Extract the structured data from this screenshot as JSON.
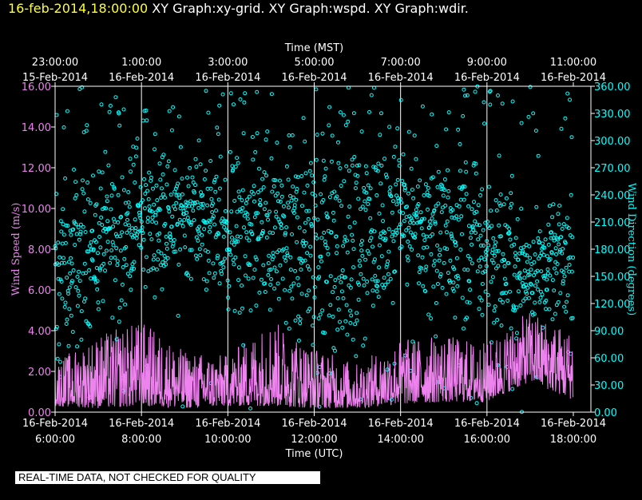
{
  "header": {
    "timestamp": "16-feb-2014,18:00:00",
    "graph_titles": "XY Graph:xy-grid.  XY Graph:wspd.  XY Graph:wdir."
  },
  "quality_notice": "REAL-TIME DATA, NOT CHECKED FOR QUALITY",
  "colors": {
    "background": "#000000",
    "frame": "#ffffff",
    "wind_speed": "#ee82ee",
    "wind_direction": "#00ffff",
    "timestamp": "#ffff33"
  },
  "chart_data": {
    "type": "scatter",
    "grid": true,
    "top_axis": {
      "label": "Time (MST)",
      "ticks": [
        {
          "time": "23:00:00",
          "date": "15-Feb-2014"
        },
        {
          "time": "1:00:00",
          "date": "16-Feb-2014"
        },
        {
          "time": "3:00:00",
          "date": "16-Feb-2014"
        },
        {
          "time": "5:00:00",
          "date": "16-Feb-2014"
        },
        {
          "time": "7:00:00",
          "date": "16-Feb-2014"
        },
        {
          "time": "9:00:00",
          "date": "16-Feb-2014"
        },
        {
          "time": "11:00:00",
          "date": "16-Feb-2014"
        }
      ]
    },
    "bottom_axis": {
      "label": "Time (UTC)",
      "ticks": [
        {
          "time": "6:00:00",
          "date": "16-Feb-2014"
        },
        {
          "time": "8:00:00",
          "date": "16-Feb-2014"
        },
        {
          "time": "10:00:00",
          "date": "16-Feb-2014"
        },
        {
          "time": "12:00:00",
          "date": "16-Feb-2014"
        },
        {
          "time": "14:00:00",
          "date": "16-Feb-2014"
        },
        {
          "time": "16:00:00",
          "date": "16-Feb-2014"
        },
        {
          "time": "18:00:00",
          "date": "16-Feb-2014"
        }
      ]
    },
    "x_range_utc_hours": [
      6,
      18
    ],
    "left_axis": {
      "label": "Wind Speed (m/s)",
      "ylim": [
        0,
        16
      ],
      "tick_labels": [
        "0.00",
        "2.00",
        "4.00",
        "6.00",
        "8.00",
        "10.00",
        "12.00",
        "14.00",
        "16.00"
      ]
    },
    "right_axis": {
      "label": "Wind Direction (degrees)",
      "ylim": [
        0,
        360
      ],
      "tick_labels": [
        "0.00",
        "30.00",
        "60.00",
        "90.00",
        "120.00",
        "150.00",
        "180.00",
        "210.00",
        "240.00",
        "270.00",
        "300.00",
        "330.00",
        "360.00"
      ]
    },
    "series": [
      {
        "name": "wspd",
        "axis": "left",
        "style": "line",
        "color": "#ee82ee",
        "approx_hourly_range_ms": [
          {
            "hour_utc": 6,
            "low": 0.3,
            "high": 2.5
          },
          {
            "hour_utc": 7,
            "low": 0.2,
            "high": 3.8
          },
          {
            "hour_utc": 8,
            "low": 0.3,
            "high": 4.5
          },
          {
            "hour_utc": 9,
            "low": 0.2,
            "high": 3.0
          },
          {
            "hour_utc": 10,
            "low": 0.3,
            "high": 2.8
          },
          {
            "hour_utc": 11,
            "low": 0.3,
            "high": 4.6
          },
          {
            "hour_utc": 12,
            "low": 0.2,
            "high": 3.2
          },
          {
            "hour_utc": 13,
            "low": 0.2,
            "high": 2.4
          },
          {
            "hour_utc": 14,
            "low": 0.4,
            "high": 3.6
          },
          {
            "hour_utc": 15,
            "low": 0.5,
            "high": 3.8
          },
          {
            "hour_utc": 16,
            "low": 0.5,
            "high": 3.4
          },
          {
            "hour_utc": 17,
            "low": 1.5,
            "high": 5.0
          },
          {
            "hour_utc": 18,
            "low": 0.6,
            "high": 4.0
          }
        ]
      },
      {
        "name": "wdir",
        "axis": "right",
        "style": "circles",
        "color": "#00ffff",
        "approx_hourly_cluster_deg": [
          {
            "hour_utc": 6,
            "center": 140,
            "spread": 100
          },
          {
            "hour_utc": 7,
            "center": 190,
            "spread": 80
          },
          {
            "hour_utc": 8,
            "center": 210,
            "spread": 70
          },
          {
            "hour_utc": 9,
            "center": 220,
            "spread": 60
          },
          {
            "hour_utc": 10,
            "center": 200,
            "spread": 80
          },
          {
            "hour_utc": 11,
            "center": 200,
            "spread": 90
          },
          {
            "hour_utc": 12,
            "center": 180,
            "spread": 120
          },
          {
            "hour_utc": 13,
            "center": 180,
            "spread": 130
          },
          {
            "hour_utc": 14,
            "center": 220,
            "spread": 60
          },
          {
            "hour_utc": 15,
            "center": 200,
            "spread": 90
          },
          {
            "hour_utc": 16,
            "center": 180,
            "spread": 90
          },
          {
            "hour_utc": 17,
            "center": 155,
            "spread": 50
          },
          {
            "hour_utc": 18,
            "center": 170,
            "spread": 60
          }
        ]
      }
    ]
  }
}
